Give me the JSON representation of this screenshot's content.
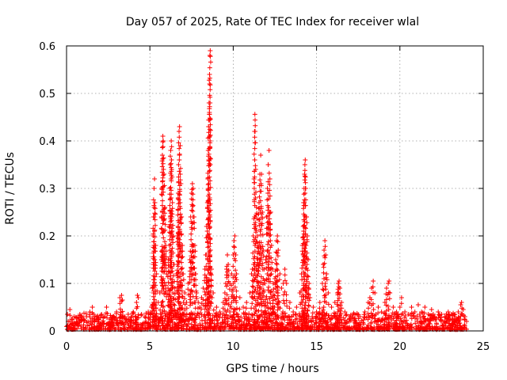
{
  "chart_data": {
    "type": "scatter",
    "title": "Day 057 of 2025, Rate Of TEC Index for receiver wlal",
    "xlabel": "GPS time / hours",
    "ylabel": "ROTI / TECUs",
    "xlim": [
      0,
      25
    ],
    "ylim": [
      0,
      0.6
    ],
    "x_ticks": [
      "0",
      "5",
      "10",
      "15",
      "20",
      "25"
    ],
    "y_ticks": [
      "0",
      "0.1",
      "0.2",
      "0.3",
      "0.4",
      "0.5",
      "0.6"
    ],
    "grid": true,
    "marker": "+",
    "color": "#ff0000",
    "x_range_observed": [
      0,
      24.0
    ],
    "series": [
      {
        "points": [
          [
            0.05,
            0.035
          ],
          [
            0.1,
            0.02
          ],
          [
            0.2,
            0.045
          ],
          [
            0.3,
            0.025
          ],
          [
            0.45,
            0.03
          ],
          [
            0.6,
            0.02
          ],
          [
            0.8,
            0.035
          ],
          [
            1.0,
            0.025
          ],
          [
            1.2,
            0.03
          ],
          [
            1.4,
            0.04
          ],
          [
            1.55,
            0.05
          ],
          [
            1.7,
            0.03
          ],
          [
            1.9,
            0.025
          ],
          [
            2.1,
            0.035
          ],
          [
            2.3,
            0.03
          ],
          [
            2.4,
            0.05
          ],
          [
            2.6,
            0.025
          ],
          [
            2.8,
            0.03
          ],
          [
            3.0,
            0.04
          ],
          [
            3.2,
            0.07
          ],
          [
            3.3,
            0.075
          ],
          [
            3.35,
            0.065
          ],
          [
            3.5,
            0.03
          ],
          [
            3.7,
            0.035
          ],
          [
            3.9,
            0.03
          ],
          [
            4.0,
            0.04
          ],
          [
            4.2,
            0.06
          ],
          [
            4.25,
            0.075
          ],
          [
            4.3,
            0.07
          ],
          [
            4.5,
            0.035
          ],
          [
            4.7,
            0.03
          ],
          [
            4.9,
            0.04
          ],
          [
            5.1,
            0.05
          ],
          [
            5.15,
            0.09
          ],
          [
            5.2,
            0.2
          ],
          [
            5.22,
            0.24
          ],
          [
            5.25,
            0.3
          ],
          [
            5.28,
            0.32
          ],
          [
            5.3,
            0.27
          ],
          [
            5.35,
            0.18
          ],
          [
            5.4,
            0.12
          ],
          [
            5.5,
            0.06
          ],
          [
            5.6,
            0.08
          ],
          [
            5.7,
            0.15
          ],
          [
            5.72,
            0.3
          ],
          [
            5.75,
            0.37
          ],
          [
            5.78,
            0.41
          ],
          [
            5.8,
            0.4
          ],
          [
            5.85,
            0.33
          ],
          [
            5.9,
            0.26
          ],
          [
            5.95,
            0.18
          ],
          [
            6.0,
            0.12
          ],
          [
            6.1,
            0.15
          ],
          [
            6.15,
            0.22
          ],
          [
            6.2,
            0.3
          ],
          [
            6.22,
            0.35
          ],
          [
            6.25,
            0.38
          ],
          [
            6.28,
            0.4
          ],
          [
            6.3,
            0.36
          ],
          [
            6.35,
            0.27
          ],
          [
            6.4,
            0.2
          ],
          [
            6.45,
            0.14
          ],
          [
            6.5,
            0.09
          ],
          [
            6.6,
            0.12
          ],
          [
            6.65,
            0.2
          ],
          [
            6.7,
            0.28
          ],
          [
            6.72,
            0.35
          ],
          [
            6.75,
            0.42
          ],
          [
            6.78,
            0.43
          ],
          [
            6.82,
            0.39
          ],
          [
            6.86,
            0.31
          ],
          [
            6.9,
            0.24
          ],
          [
            6.95,
            0.18
          ],
          [
            7.0,
            0.12
          ],
          [
            7.1,
            0.08
          ],
          [
            7.2,
            0.06
          ],
          [
            7.3,
            0.1
          ],
          [
            7.4,
            0.15
          ],
          [
            7.45,
            0.24
          ],
          [
            7.5,
            0.29
          ],
          [
            7.55,
            0.31
          ],
          [
            7.6,
            0.3
          ],
          [
            7.65,
            0.24
          ],
          [
            7.7,
            0.18
          ],
          [
            7.75,
            0.12
          ],
          [
            7.8,
            0.08
          ],
          [
            7.9,
            0.06
          ],
          [
            8.0,
            0.05
          ],
          [
            8.1,
            0.07
          ],
          [
            8.2,
            0.09
          ],
          [
            8.3,
            0.13
          ],
          [
            8.35,
            0.16
          ],
          [
            8.4,
            0.22
          ],
          [
            8.45,
            0.27
          ],
          [
            8.48,
            0.32
          ],
          [
            8.5,
            0.38
          ],
          [
            8.52,
            0.43
          ],
          [
            8.55,
            0.48
          ],
          [
            8.58,
            0.54
          ],
          [
            8.6,
            0.58
          ],
          [
            8.62,
            0.59
          ],
          [
            8.65,
            0.12
          ],
          [
            8.7,
            0.13
          ],
          [
            8.8,
            0.08
          ],
          [
            9.0,
            0.05
          ],
          [
            9.2,
            0.04
          ],
          [
            9.4,
            0.06
          ],
          [
            9.5,
            0.08
          ],
          [
            9.55,
            0.1
          ],
          [
            9.6,
            0.13
          ],
          [
            9.65,
            0.16
          ],
          [
            9.7,
            0.14
          ],
          [
            9.8,
            0.1
          ],
          [
            9.9,
            0.12
          ],
          [
            10.0,
            0.16
          ],
          [
            10.05,
            0.19
          ],
          [
            10.1,
            0.2
          ],
          [
            10.15,
            0.16
          ],
          [
            10.2,
            0.12
          ],
          [
            10.4,
            0.07
          ],
          [
            10.6,
            0.05
          ],
          [
            10.8,
            0.06
          ],
          [
            11.0,
            0.08
          ],
          [
            11.1,
            0.12
          ],
          [
            11.15,
            0.13
          ],
          [
            11.2,
            0.2
          ],
          [
            11.25,
            0.32
          ],
          [
            11.28,
            0.42
          ],
          [
            11.3,
            0.456
          ],
          [
            11.35,
            0.34
          ],
          [
            11.4,
            0.26
          ],
          [
            11.45,
            0.2
          ],
          [
            11.5,
            0.18
          ],
          [
            11.55,
            0.27
          ],
          [
            11.6,
            0.33
          ],
          [
            11.65,
            0.37
          ],
          [
            11.7,
            0.33
          ],
          [
            11.75,
            0.25
          ],
          [
            11.8,
            0.17
          ],
          [
            11.85,
            0.13
          ],
          [
            11.9,
            0.1
          ],
          [
            11.95,
            0.15
          ],
          [
            12.0,
            0.24
          ],
          [
            12.05,
            0.3
          ],
          [
            12.1,
            0.35
          ],
          [
            12.15,
            0.38
          ],
          [
            12.2,
            0.32
          ],
          [
            12.25,
            0.25
          ],
          [
            12.3,
            0.18
          ],
          [
            12.35,
            0.13
          ],
          [
            12.4,
            0.1
          ],
          [
            12.5,
            0.11
          ],
          [
            12.55,
            0.15
          ],
          [
            12.6,
            0.19
          ],
          [
            12.65,
            0.2
          ],
          [
            12.7,
            0.17
          ],
          [
            12.8,
            0.12
          ],
          [
            12.9,
            0.09
          ],
          [
            13.0,
            0.1
          ],
          [
            13.1,
            0.13
          ],
          [
            13.2,
            0.1
          ],
          [
            13.4,
            0.06
          ],
          [
            13.6,
            0.04
          ],
          [
            13.8,
            0.05
          ],
          [
            14.0,
            0.08
          ],
          [
            14.1,
            0.12
          ],
          [
            14.15,
            0.18
          ],
          [
            14.2,
            0.22
          ],
          [
            14.22,
            0.27
          ],
          [
            14.25,
            0.3
          ],
          [
            14.28,
            0.33
          ],
          [
            14.3,
            0.35
          ],
          [
            14.32,
            0.36
          ],
          [
            14.35,
            0.3
          ],
          [
            14.4,
            0.24
          ],
          [
            14.45,
            0.2
          ],
          [
            14.5,
            0.15
          ],
          [
            14.55,
            0.1
          ],
          [
            14.6,
            0.07
          ],
          [
            14.8,
            0.05
          ],
          [
            15.0,
            0.04
          ],
          [
            15.2,
            0.06
          ],
          [
            15.35,
            0.1
          ],
          [
            15.4,
            0.14
          ],
          [
            15.45,
            0.17
          ],
          [
            15.5,
            0.19
          ],
          [
            15.55,
            0.16
          ],
          [
            15.6,
            0.12
          ],
          [
            15.7,
            0.08
          ],
          [
            15.9,
            0.05
          ],
          [
            16.1,
            0.06
          ],
          [
            16.25,
            0.08
          ],
          [
            16.3,
            0.1
          ],
          [
            16.35,
            0.105
          ],
          [
            16.4,
            0.09
          ],
          [
            16.5,
            0.06
          ],
          [
            16.7,
            0.04
          ],
          [
            17.0,
            0.03
          ],
          [
            17.3,
            0.035
          ],
          [
            17.6,
            0.03
          ],
          [
            17.9,
            0.04
          ],
          [
            18.1,
            0.06
          ],
          [
            18.2,
            0.07
          ],
          [
            18.3,
            0.09
          ],
          [
            18.4,
            0.105
          ],
          [
            18.5,
            0.08
          ],
          [
            18.7,
            0.05
          ],
          [
            18.9,
            0.04
          ],
          [
            19.1,
            0.06
          ],
          [
            19.2,
            0.09
          ],
          [
            19.3,
            0.1
          ],
          [
            19.35,
            0.105
          ],
          [
            19.4,
            0.08
          ],
          [
            19.6,
            0.05
          ],
          [
            19.8,
            0.04
          ],
          [
            20.0,
            0.05
          ],
          [
            20.1,
            0.07
          ],
          [
            20.3,
            0.04
          ],
          [
            20.5,
            0.035
          ],
          [
            20.7,
            0.05
          ],
          [
            20.9,
            0.04
          ],
          [
            21.1,
            0.055
          ],
          [
            21.3,
            0.04
          ],
          [
            21.5,
            0.05
          ],
          [
            21.7,
            0.035
          ],
          [
            21.9,
            0.045
          ],
          [
            22.1,
            0.03
          ],
          [
            22.3,
            0.04
          ],
          [
            22.5,
            0.035
          ],
          [
            22.7,
            0.03
          ],
          [
            22.9,
            0.04
          ],
          [
            23.1,
            0.035
          ],
          [
            23.3,
            0.03
          ],
          [
            23.5,
            0.04
          ],
          [
            23.65,
            0.055
          ],
          [
            23.7,
            0.06
          ],
          [
            23.8,
            0.045
          ],
          [
            23.9,
            0.03
          ],
          [
            24.0,
            0.02
          ]
        ]
      }
    ]
  }
}
